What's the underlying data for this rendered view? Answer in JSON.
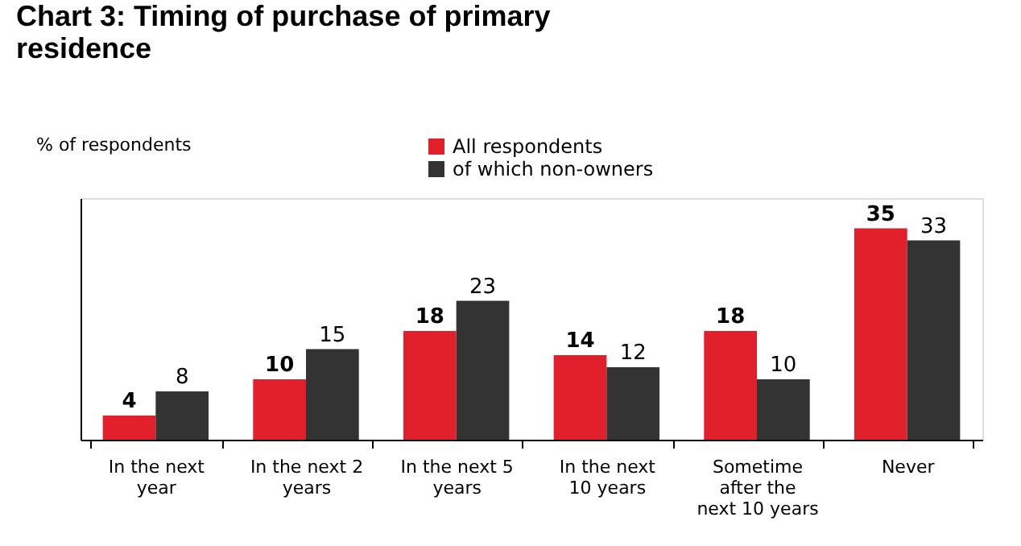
{
  "chart_data": {
    "type": "bar",
    "title": "Chart 3: Timing of purchase of primary residence",
    "ylabel": "% of respondents",
    "categories": [
      "In the next year",
      "In the next 2 years",
      "In the next 5 years",
      "In the next 10 years",
      "Sometime after the next 10 years",
      "Never"
    ],
    "series": [
      {
        "name": "All respondents",
        "color": "#e2202c",
        "values": [
          4,
          10,
          18,
          14,
          18,
          35
        ]
      },
      {
        "name": "of which non-owners",
        "color": "#333333",
        "values": [
          8,
          15,
          23,
          12,
          10,
          33
        ]
      }
    ],
    "ylim": [
      0,
      40
    ],
    "tick_labels": "x",
    "data_labels": true,
    "grid": false,
    "legend": "top"
  }
}
